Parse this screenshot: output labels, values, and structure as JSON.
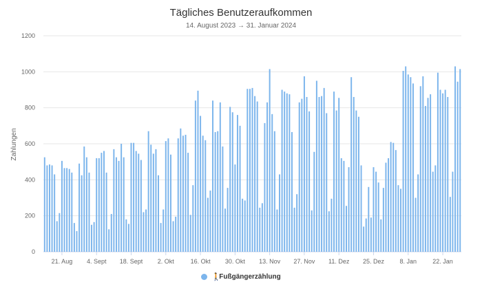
{
  "chart_data": {
    "type": "bar",
    "title": "Tägliches Benutzeraufkommen",
    "subtitle": "14. August 2023 → 31. Januar 2024",
    "ylabel": "Zahlungen",
    "ylim": [
      0,
      1200
    ],
    "yticks": [
      0,
      200,
      400,
      600,
      800,
      1000,
      1200
    ],
    "grid": true,
    "legend_position": "bottom",
    "bar_color": "#7cb5ec",
    "start_date": "2023-08-14",
    "xtick_labels": [
      {
        "index": 7,
        "label": "21. Aug"
      },
      {
        "index": 21,
        "label": "4. Sept"
      },
      {
        "index": 35,
        "label": "18. Sept"
      },
      {
        "index": 49,
        "label": "2. Okt"
      },
      {
        "index": 63,
        "label": "16. Okt"
      },
      {
        "index": 77,
        "label": "30. Okt"
      },
      {
        "index": 91,
        "label": "13. Nov"
      },
      {
        "index": 105,
        "label": "27. Nov"
      },
      {
        "index": 119,
        "label": "11. Dez"
      },
      {
        "index": 133,
        "label": "25. Dez"
      },
      {
        "index": 147,
        "label": "8. Jan"
      },
      {
        "index": 161,
        "label": "22. Jan"
      }
    ],
    "series": [
      {
        "name": "Fußgängerzählung",
        "values": [
          525,
          480,
          485,
          480,
          430,
          170,
          215,
          505,
          465,
          465,
          460,
          440,
          160,
          115,
          490,
          425,
          585,
          525,
          440,
          150,
          165,
          520,
          520,
          550,
          560,
          440,
          125,
          210,
          570,
          525,
          505,
          600,
          525,
          180,
          155,
          605,
          605,
          560,
          545,
          510,
          220,
          235,
          670,
          595,
          545,
          570,
          425,
          160,
          235,
          615,
          630,
          540,
          170,
          195,
          630,
          685,
          645,
          650,
          550,
          205,
          370,
          840,
          895,
          755,
          645,
          620,
          300,
          340,
          840,
          665,
          670,
          830,
          585,
          240,
          355,
          805,
          775,
          485,
          760,
          700,
          295,
          285,
          905,
          905,
          910,
          865,
          835,
          245,
          270,
          715,
          830,
          1015,
          765,
          670,
          235,
          430,
          900,
          890,
          880,
          875,
          665,
          245,
          320,
          830,
          850,
          975,
          860,
          780,
          230,
          555,
          950,
          860,
          865,
          910,
          770,
          225,
          295,
          890,
          785,
          855,
          520,
          505,
          255,
          470,
          970,
          860,
          785,
          750,
          480,
          140,
          185,
          360,
          190,
          470,
          445,
          385,
          180,
          355,
          495,
          520,
          610,
          605,
          565,
          370,
          350,
          1005,
          1030,
          985,
          970,
          935,
          300,
          430,
          920,
          975,
          810,
          855,
          875,
          445,
          480,
          995,
          900,
          880,
          900,
          860,
          305,
          445,
          1030,
          945,
          1015
        ]
      }
    ]
  },
  "legend": {
    "label": "Fußgängerzählung",
    "color": "#7cb5ec",
    "icon": "pedestrian-icon"
  }
}
